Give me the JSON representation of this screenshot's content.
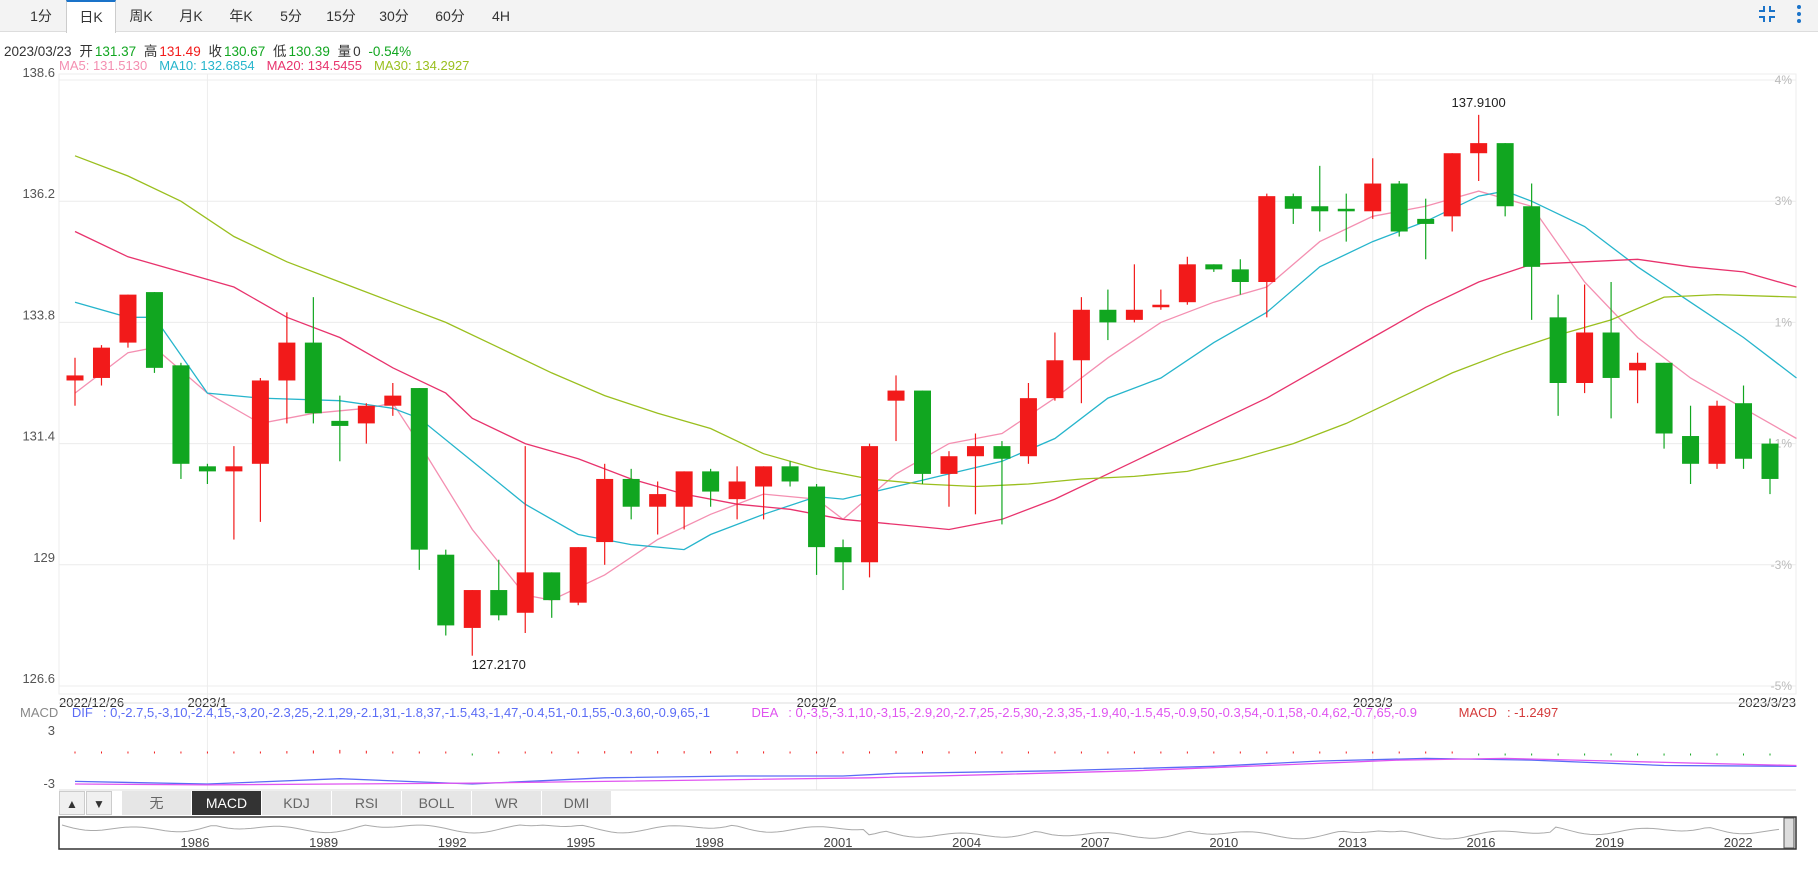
{
  "timeframe_tabs": [
    {
      "label": "1分",
      "active": false
    },
    {
      "label": "日K",
      "active": true
    },
    {
      "label": "周K",
      "active": false
    },
    {
      "label": "月K",
      "active": false
    },
    {
      "label": "年K",
      "active": false
    },
    {
      "label": "5分",
      "active": false
    },
    {
      "label": "15分",
      "active": false
    },
    {
      "label": "30分",
      "active": false
    },
    {
      "label": "60分",
      "active": false
    },
    {
      "label": "4H",
      "active": false
    }
  ],
  "info": {
    "date": "2023/03/23",
    "open_label": "开",
    "open": "131.37",
    "high_label": "高",
    "high": "131.49",
    "close_label": "收",
    "close": "130.67",
    "low_label": "低",
    "low": "130.39",
    "volume_label": "量",
    "volume": "0",
    "change": "-0.54%"
  },
  "ma_legend": [
    {
      "name": "MA5",
      "value": "131.5130",
      "color": "#f48fb1"
    },
    {
      "name": "MA10",
      "value": "132.6854",
      "color": "#26b5cc"
    },
    {
      "name": "MA20",
      "value": "134.5455",
      "color": "#e8336d"
    },
    {
      "name": "MA30",
      "value": "134.2927",
      "color": "#9abf1e"
    }
  ],
  "colors": {
    "up": "#f21a1a",
    "down": "#11a620",
    "grid": "#ececec",
    "axis_text": "#555",
    "pct_text": "#bbb",
    "dif": "#5b6cf5",
    "dea": "#e054f0"
  },
  "chart_data": {
    "type": "candlestick",
    "ylim": [
      126.6,
      138.6
    ],
    "y_ticks": [
      "138.6",
      "136.2",
      "133.8",
      "131.4",
      "129",
      "126.6"
    ],
    "pct_ticks": [
      "4%",
      "3%",
      "1%",
      "-1%",
      "-3%",
      "-5%"
    ],
    "x_labels": [
      {
        "label": "2022/12/26",
        "index": 0
      },
      {
        "label": "2023/1",
        "index": 5
      },
      {
        "label": "2023/2",
        "index": 28
      },
      {
        "label": "2023/3",
        "index": 49
      },
      {
        "label": "2023/3/23",
        "index": 65
      }
    ],
    "annotations": [
      {
        "text": "137.9100",
        "index": 53,
        "value": 137.91
      },
      {
        "text": "127.2170",
        "index": 16,
        "value": 127.217
      }
    ],
    "candles": [
      [
        132.65,
        132.75,
        132.15,
        133.1
      ],
      [
        132.7,
        133.3,
        132.55,
        133.35
      ],
      [
        133.4,
        134.35,
        133.3,
        134.35
      ],
      [
        134.4,
        132.9,
        132.8,
        134.4
      ],
      [
        132.95,
        131.0,
        130.7,
        133.0
      ],
      [
        130.95,
        130.85,
        130.6,
        131.0
      ],
      [
        130.85,
        130.95,
        129.5,
        131.35
      ],
      [
        131.0,
        132.65,
        129.85,
        132.7
      ],
      [
        132.65,
        133.4,
        131.8,
        134.0
      ],
      [
        133.4,
        132.0,
        131.8,
        134.3
      ],
      [
        131.85,
        131.75,
        131.05,
        132.35
      ],
      [
        131.8,
        132.15,
        131.4,
        132.2
      ],
      [
        132.15,
        132.35,
        131.95,
        132.6
      ],
      [
        132.5,
        129.3,
        128.9,
        132.5
      ],
      [
        129.2,
        127.8,
        127.6,
        129.3
      ],
      [
        127.75,
        128.5,
        127.2,
        128.5
      ],
      [
        128.5,
        128.0,
        127.9,
        129.1
      ],
      [
        128.05,
        128.85,
        127.65,
        131.35
      ],
      [
        128.85,
        128.3,
        127.95,
        128.85
      ],
      [
        128.25,
        129.35,
        128.2,
        129.35
      ],
      [
        129.45,
        130.7,
        129.0,
        131.0
      ],
      [
        130.7,
        130.15,
        129.9,
        130.9
      ],
      [
        130.15,
        130.4,
        129.6,
        130.65
      ],
      [
        130.15,
        130.85,
        129.7,
        130.85
      ],
      [
        130.85,
        130.45,
        130.15,
        130.9
      ],
      [
        130.3,
        130.65,
        129.9,
        130.95
      ],
      [
        130.55,
        130.95,
        129.9,
        130.95
      ],
      [
        130.95,
        130.65,
        130.55,
        131.05
      ],
      [
        130.55,
        129.35,
        128.8,
        130.6
      ],
      [
        129.35,
        129.05,
        128.5,
        129.5
      ],
      [
        129.05,
        131.35,
        128.75,
        131.4
      ],
      [
        132.25,
        132.45,
        131.45,
        132.75
      ],
      [
        132.45,
        130.8,
        130.6,
        132.45
      ],
      [
        130.8,
        131.15,
        130.15,
        131.25
      ],
      [
        131.15,
        131.35,
        130.0,
        131.6
      ],
      [
        131.35,
        131.1,
        129.8,
        131.45
      ],
      [
        131.15,
        132.3,
        131.0,
        132.6
      ],
      [
        132.3,
        133.05,
        132.25,
        133.6
      ],
      [
        133.05,
        134.05,
        132.2,
        134.3
      ],
      [
        134.05,
        133.8,
        133.45,
        134.45
      ],
      [
        133.85,
        134.05,
        133.8,
        134.95
      ],
      [
        134.1,
        134.15,
        134.05,
        134.45
      ],
      [
        134.2,
        134.95,
        134.15,
        135.1
      ],
      [
        134.95,
        134.85,
        134.8,
        134.95
      ],
      [
        134.85,
        134.6,
        134.35,
        135.05
      ],
      [
        134.6,
        136.3,
        133.9,
        136.35
      ],
      [
        136.3,
        136.05,
        135.75,
        136.35
      ],
      [
        136.1,
        136.0,
        135.6,
        136.9
      ],
      [
        136.05,
        136.0,
        135.4,
        136.35
      ],
      [
        136.0,
        136.55,
        135.85,
        137.05
      ],
      [
        136.55,
        135.6,
        135.5,
        136.6
      ],
      [
        135.85,
        135.75,
        135.05,
        136.25
      ],
      [
        135.9,
        137.15,
        135.6,
        137.15
      ],
      [
        137.15,
        137.35,
        136.6,
        137.91
      ],
      [
        137.35,
        136.1,
        135.9,
        137.35
      ],
      [
        136.1,
        134.9,
        133.85,
        136.55
      ],
      [
        133.9,
        132.6,
        131.95,
        134.35
      ],
      [
        132.6,
        133.6,
        132.4,
        134.55
      ],
      [
        133.6,
        132.7,
        131.9,
        134.6
      ],
      [
        132.85,
        133.0,
        132.2,
        133.2
      ],
      [
        133.0,
        131.6,
        131.3,
        133.0
      ],
      [
        131.55,
        131.0,
        130.6,
        132.15
      ],
      [
        131.0,
        132.15,
        130.9,
        132.25
      ],
      [
        132.2,
        131.1,
        130.9,
        132.55
      ],
      [
        131.4,
        130.7,
        130.4,
        131.5
      ]
    ],
    "ma": {
      "MA5": [
        [
          0,
          132.4
        ],
        [
          2,
          133.2
        ],
        [
          3,
          133.3
        ],
        [
          5,
          132.4
        ],
        [
          7,
          131.8
        ],
        [
          9,
          132.0
        ],
        [
          11,
          132.1
        ],
        [
          12,
          132.2
        ],
        [
          13,
          131.4
        ],
        [
          15,
          129.7
        ],
        [
          17,
          128.4
        ],
        [
          18,
          128.3
        ],
        [
          20,
          128.8
        ],
        [
          22,
          129.5
        ],
        [
          24,
          130.0
        ],
        [
          26,
          130.4
        ],
        [
          28,
          130.3
        ],
        [
          29,
          129.9
        ],
        [
          31,
          130.8
        ],
        [
          33,
          131.4
        ],
        [
          35,
          131.6
        ],
        [
          37,
          132.3
        ],
        [
          39,
          133.1
        ],
        [
          41,
          133.8
        ],
        [
          43,
          134.2
        ],
        [
          45,
          134.5
        ],
        [
          47,
          135.4
        ],
        [
          49,
          135.9
        ],
        [
          51,
          136.1
        ],
        [
          53,
          136.4
        ],
        [
          55,
          136.1
        ],
        [
          57,
          134.6
        ],
        [
          59,
          133.5
        ],
        [
          61,
          132.7
        ],
        [
          63,
          132.1
        ],
        [
          65,
          131.5
        ]
      ],
      "MA10": [
        [
          0,
          134.2
        ],
        [
          2,
          133.9
        ],
        [
          3,
          133.9
        ],
        [
          5,
          132.4
        ],
        [
          7,
          132.3
        ],
        [
          10,
          132.25
        ],
        [
          12,
          132.1
        ],
        [
          13,
          131.9
        ],
        [
          15,
          131.05
        ],
        [
          17,
          130.2
        ],
        [
          19,
          129.6
        ],
        [
          21,
          129.4
        ],
        [
          23,
          129.3
        ],
        [
          24,
          129.6
        ],
        [
          26,
          130.0
        ],
        [
          28,
          130.35
        ],
        [
          29,
          130.3
        ],
        [
          31,
          130.55
        ],
        [
          33,
          130.8
        ],
        [
          35,
          131.05
        ],
        [
          37,
          131.5
        ],
        [
          39,
          132.3
        ],
        [
          41,
          132.7
        ],
        [
          43,
          133.4
        ],
        [
          45,
          134.0
        ],
        [
          47,
          134.9
        ],
        [
          49,
          135.4
        ],
        [
          51,
          135.8
        ],
        [
          53,
          136.3
        ],
        [
          54,
          136.4
        ],
        [
          55,
          136.2
        ],
        [
          57,
          135.7
        ],
        [
          59,
          134.9
        ],
        [
          61,
          134.2
        ],
        [
          63,
          133.5
        ],
        [
          65,
          132.7
        ]
      ],
      "MA20": [
        [
          0,
          135.6
        ],
        [
          2,
          135.1
        ],
        [
          4,
          134.8
        ],
        [
          6,
          134.5
        ],
        [
          8,
          133.9
        ],
        [
          10,
          133.5
        ],
        [
          12,
          132.9
        ],
        [
          14,
          132.4
        ],
        [
          15,
          131.9
        ],
        [
          17,
          131.4
        ],
        [
          19,
          131.1
        ],
        [
          21,
          130.7
        ],
        [
          23,
          130.4
        ],
        [
          25,
          130.2
        ],
        [
          27,
          130.1
        ],
        [
          29,
          129.9
        ],
        [
          31,
          129.8
        ],
        [
          33,
          129.7
        ],
        [
          35,
          129.9
        ],
        [
          37,
          130.3
        ],
        [
          39,
          130.8
        ],
        [
          41,
          131.3
        ],
        [
          43,
          131.8
        ],
        [
          45,
          132.3
        ],
        [
          47,
          132.9
        ],
        [
          49,
          133.5
        ],
        [
          51,
          134.1
        ],
        [
          53,
          134.6
        ],
        [
          55,
          134.95
        ],
        [
          57,
          135.0
        ],
        [
          59,
          135.05
        ],
        [
          61,
          134.9
        ],
        [
          63,
          134.8
        ],
        [
          65,
          134.5
        ]
      ],
      "MA30": [
        [
          0,
          137.1
        ],
        [
          2,
          136.7
        ],
        [
          4,
          136.2
        ],
        [
          6,
          135.5
        ],
        [
          8,
          135.0
        ],
        [
          10,
          134.6
        ],
        [
          12,
          134.2
        ],
        [
          14,
          133.8
        ],
        [
          16,
          133.3
        ],
        [
          18,
          132.8
        ],
        [
          20,
          132.35
        ],
        [
          22,
          132.0
        ],
        [
          24,
          131.7
        ],
        [
          26,
          131.2
        ],
        [
          28,
          130.9
        ],
        [
          30,
          130.7
        ],
        [
          32,
          130.6
        ],
        [
          34,
          130.55
        ],
        [
          36,
          130.6
        ],
        [
          38,
          130.7
        ],
        [
          40,
          130.75
        ],
        [
          42,
          130.85
        ],
        [
          44,
          131.1
        ],
        [
          46,
          131.4
        ],
        [
          48,
          131.8
        ],
        [
          50,
          132.3
        ],
        [
          52,
          132.8
        ],
        [
          54,
          133.2
        ],
        [
          56,
          133.55
        ],
        [
          58,
          133.85
        ],
        [
          60,
          134.3
        ],
        [
          62,
          134.35
        ],
        [
          65,
          134.3
        ]
      ]
    },
    "macd": {
      "legend_label": "MACD",
      "dif_label": "DIF",
      "dif": [
        [
          0,
          -2.7
        ],
        [
          5,
          -3.0
        ],
        [
          10,
          -2.4
        ],
        [
          15,
          -3.0
        ],
        [
          20,
          -2.3
        ],
        [
          25,
          -2.1
        ],
        [
          29,
          -2.1
        ],
        [
          31,
          -1.8
        ],
        [
          37,
          -1.5
        ],
        [
          43,
          -1.0
        ],
        [
          47,
          -0.4
        ],
        [
          51,
          -0.1
        ],
        [
          55,
          -0.3
        ],
        [
          60,
          -0.9
        ],
        [
          65,
          -1.0
        ]
      ],
      "dea_label": "DEA",
      "dea": [
        [
          0,
          -3.0
        ],
        [
          5,
          -3.1
        ],
        [
          10,
          -3.0
        ],
        [
          15,
          -2.9
        ],
        [
          20,
          -2.7
        ],
        [
          25,
          -2.5
        ],
        [
          30,
          -2.3
        ],
        [
          35,
          -1.9
        ],
        [
          40,
          -1.5
        ],
        [
          45,
          -0.9
        ],
        [
          50,
          -0.3
        ],
        [
          54,
          -0.1
        ],
        [
          58,
          -0.4
        ],
        [
          62,
          -0.7
        ],
        [
          65,
          -0.9
        ]
      ],
      "macd_label": "MACD",
      "macd": "-1.2497",
      "ylim": [
        -3,
        3
      ],
      "y_ticks": [
        "3",
        "-3"
      ]
    }
  },
  "indicator_tabs": [
    {
      "label": "无",
      "active": false
    },
    {
      "label": "MACD",
      "active": true
    },
    {
      "label": "KDJ",
      "active": false
    },
    {
      "label": "RSI",
      "active": false
    },
    {
      "label": "BOLL",
      "active": false
    },
    {
      "label": "WR",
      "active": false
    },
    {
      "label": "DMI",
      "active": false
    }
  ],
  "nav_buttons": {
    "up": "▲",
    "down": "▼"
  },
  "overview_years": [
    "1986",
    "1989",
    "1992",
    "1995",
    "1998",
    "2001",
    "2004",
    "2007",
    "2010",
    "2013",
    "2016",
    "2019",
    "2022"
  ]
}
